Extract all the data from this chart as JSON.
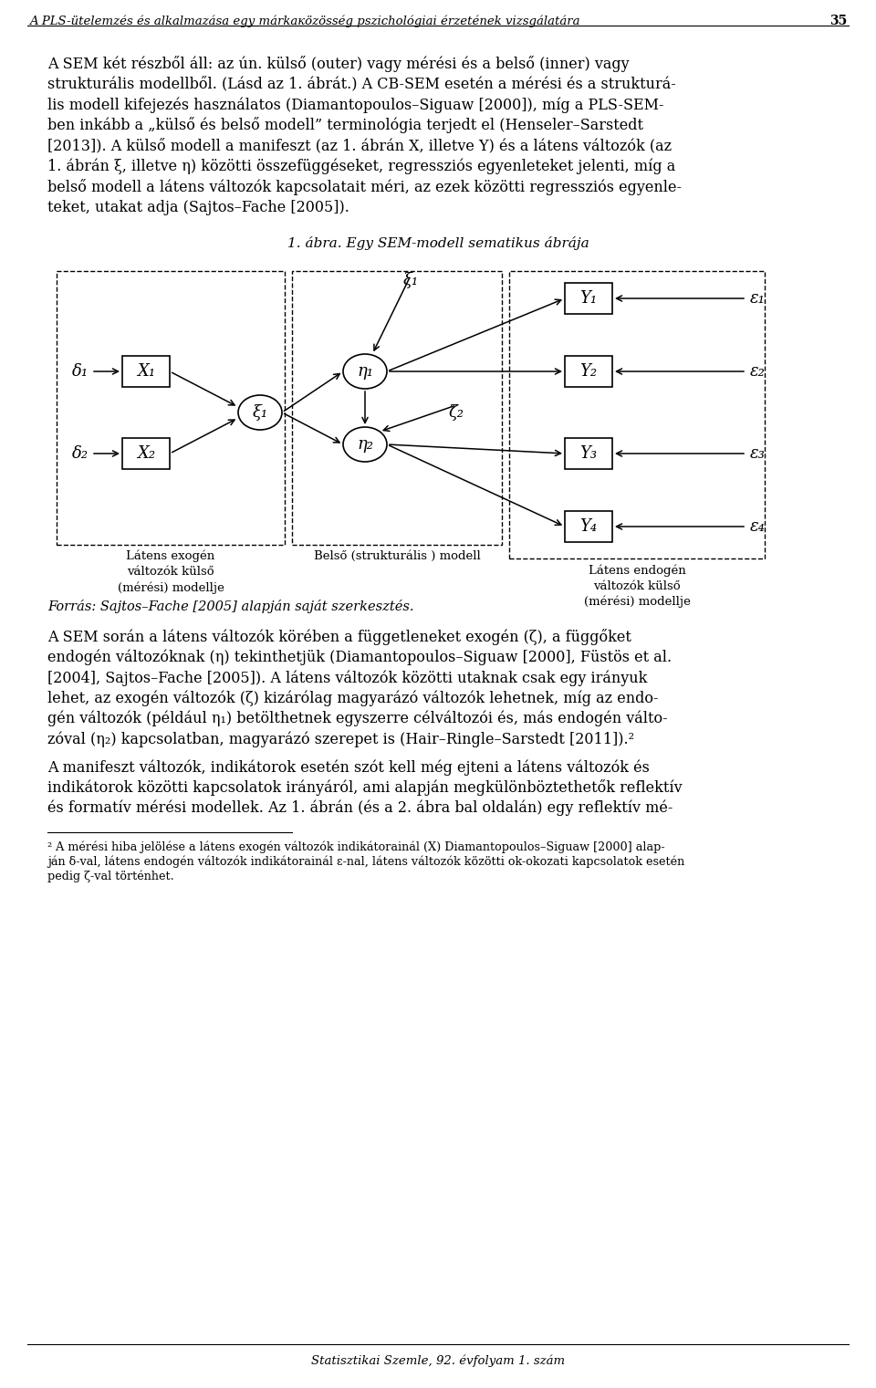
{
  "header_text": "A PLS-ütelemzés és alkalmazása egy márkaкözösség pszichológiai érzetének vizsgálatára",
  "header_number": "35",
  "footer_text": "Statisztikai Szemle, 92. évfolyam 1. szám",
  "figure_title": "1. ábra. Egy SEM-modell sematikus ábrája",
  "source_note": "Forrás: Sajtos–Fache [2005] alapján saját szerkesztés.",
  "bg_color": "#ffffff",
  "text_color": "#000000",
  "p1_lines": [
    "A SEM két részből áll: az ún. külső (outer) vagy mérési és a belső (inner) vagy",
    "strukturális modellből. (Lásd az 1. ábrát.) A CB-SEM esetén a mérési és a strukturá-",
    "lis modell kifejezés használatos (Diamantopoulos–Siguaw [2000]), míg a PLS-SEM-",
    "ben inkább a „külső és belső modell” terminológia terjedt el (Henseler–Sarstedt",
    "[2013]). A külső modell a manifeszt (az 1. ábrán X, illetve Y) és a látens változók (az",
    "1. ábrán ξ, illetve η) közötti összefüggéseket, regressziós egyenleteket jelenti, míg a",
    "belső modell a látens változók kapcsolatait méri, az ezek közötti regressziós egyenle-",
    "teket, utakat adja (Sajtos–Fache [2005])."
  ],
  "p2_lines": [
    "A SEM során a látens változók körében a függetleneket exogén (ζ), a függőket",
    "endogén változóknak (η) tekinthetjük (Diamantopoulos–Siguaw [2000], Füstös et al.",
    "[2004], Sajtos–Fache [2005]). A látens változók közötti utaknak csak egy irányuk",
    "lehet, az exogén változók (ζ) kizárólag magyarázó változók lehetnek, míg az endo-",
    "gén változók (például η₁) betölthetnek egyszerre célváltozói és, más endogén válto-",
    "zóval (η₂) kapcsolatban, magyarázó szerepet is (Hair–Ringle–Sarstedt [2011]).²"
  ],
  "p3_lines": [
    "A manifeszt változók, indikátorok esetén szót kell még ejteni a látens változók és",
    "indikátorok közötti kapcsolatok irányáról, ami alapján megkülönböztethetők reflektív",
    "és formatív mérési modellek. Az 1. ábrán (és a 2. ábra bal oldalán) egy reflektív mé-"
  ],
  "fn_lines": [
    "² A mérési hiba jelölése a látens exogén változók indikátorainál (X) Diamantopoulos–Siguaw [2000] alap-",
    "ján δ-val, látens endogén változók indikátorainál ε-nal, látens változók közötti ok-okozati kapcsolatok esetén",
    "pedig ζ-val történhet."
  ],
  "left_box_label": "Látens exogén\nváltozók külső\n(mérési) modellje",
  "mid_box_label": "Belső (strukturális ) modell",
  "right_box_label": "Látens endogén\nváltozók külső\n(mérési) modellje"
}
